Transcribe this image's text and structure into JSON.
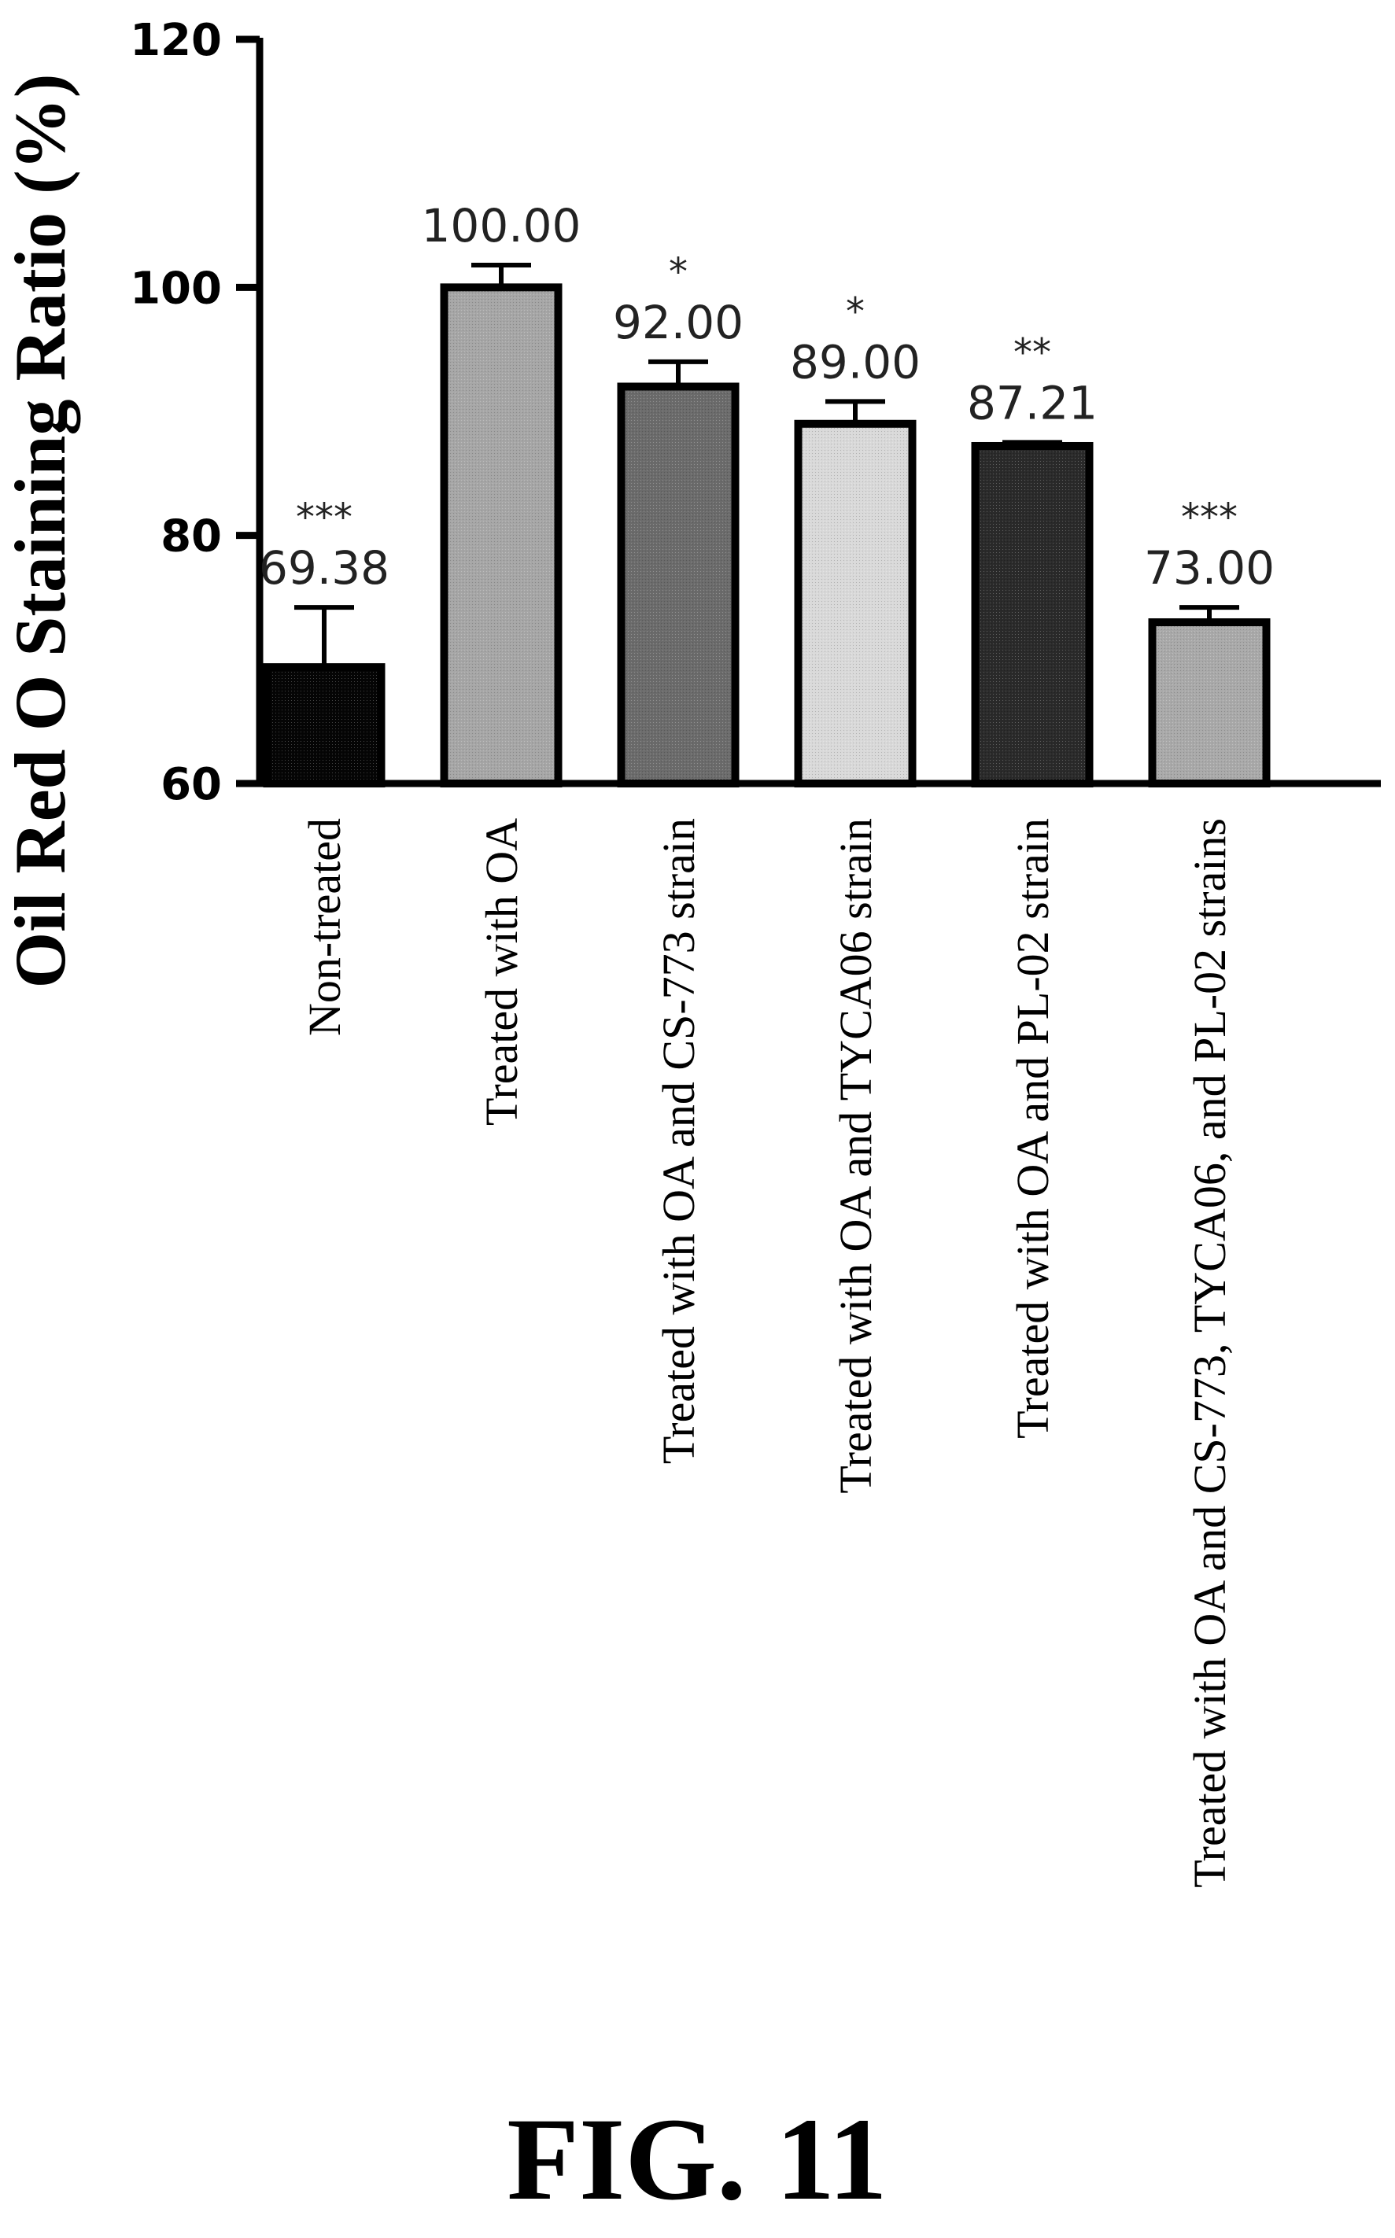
{
  "figure_caption": "FIG. 11",
  "chart_data": {
    "type": "bar",
    "title": "",
    "xlabel": "",
    "ylabel": "Oil Red O Staining Ratio (%)",
    "ylim": [
      60,
      120
    ],
    "yticks": [
      "60",
      "80",
      "100",
      "120"
    ],
    "grid": false,
    "categories": [
      "Non-treated",
      "Treated with OA",
      "Treated with OA and CS-773 strain",
      "Treated with OA and TYCA06 strain",
      "Treated with OA and PL-02 strain",
      "Treated with OA and CS-773, TYCA06, and PL-02 strains"
    ],
    "values": [
      69.38,
      100.0,
      92.0,
      89.0,
      87.21,
      73.0
    ],
    "value_labels": [
      "69.38",
      "100.00",
      "92.00",
      "89.00",
      "87.21",
      "73.00"
    ],
    "error_upper": [
      74.2,
      101.8,
      94.0,
      90.8,
      87.5,
      74.2
    ],
    "significance": [
      "***",
      "",
      "*",
      "*",
      "**",
      "***"
    ],
    "bar_colors": [
      "#050505",
      "#a6a6a6",
      "#6b6b6b",
      "#d9d9d9",
      "#2a2a2a",
      "#a9a9a9"
    ]
  }
}
